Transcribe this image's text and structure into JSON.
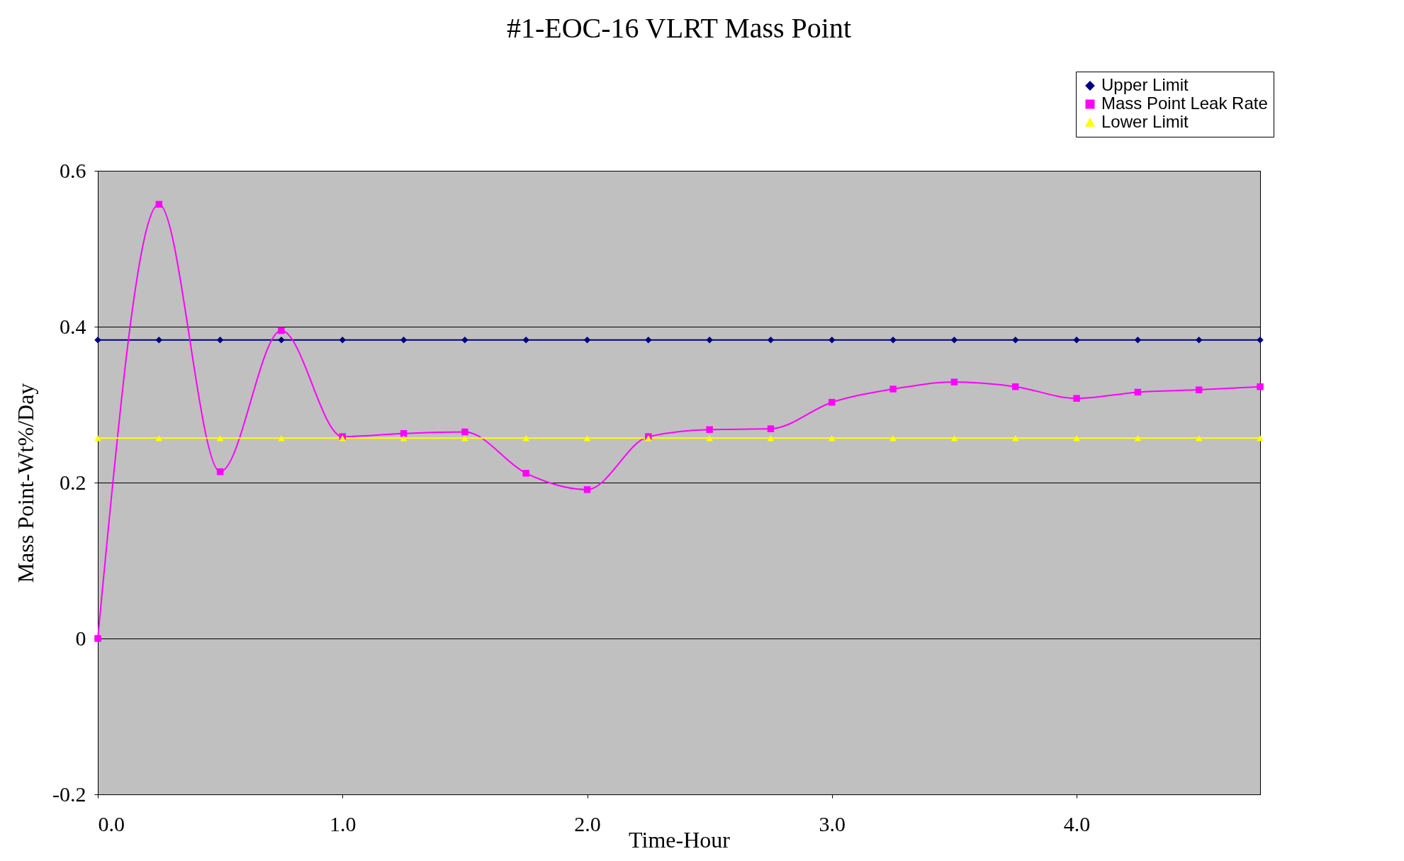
{
  "chart_data": {
    "type": "line",
    "title": "#1-EOC-16 VLRT Mass Point",
    "xlabel": "Time-Hour",
    "ylabel": "Mass Point-Wt%/Day",
    "x": [
      0,
      0.25,
      0.5,
      0.75,
      1.0,
      1.25,
      1.5,
      1.75,
      2.0,
      2.25,
      2.5,
      2.75,
      3.0,
      3.25,
      3.5,
      3.75,
      4.0,
      4.25,
      4.5,
      4.75
    ],
    "series": [
      {
        "name": "Upper Limit",
        "color": "#000080",
        "marker": "diamond",
        "values": [
          0.383,
          0.383,
          0.383,
          0.383,
          0.383,
          0.383,
          0.383,
          0.383,
          0.383,
          0.383,
          0.383,
          0.383,
          0.383,
          0.383,
          0.383,
          0.383,
          0.383,
          0.383,
          0.383,
          0.383
        ]
      },
      {
        "name": "Mass Point Leak Rate",
        "color": "#ff00ff",
        "marker": "square",
        "values": [
          0,
          0.557,
          0.214,
          0.395,
          0.259,
          0.263,
          0.265,
          0.212,
          0.191,
          0.259,
          0.268,
          0.269,
          0.303,
          0.32,
          0.329,
          0.323,
          0.308,
          0.316,
          0.319,
          0.323
        ]
      },
      {
        "name": "Lower Limit",
        "color": "#ffff00",
        "marker": "triangle",
        "values": [
          0.257,
          0.257,
          0.257,
          0.257,
          0.257,
          0.257,
          0.257,
          0.257,
          0.257,
          0.257,
          0.257,
          0.257,
          0.257,
          0.257,
          0.257,
          0.257,
          0.257,
          0.257,
          0.257,
          0.257
        ]
      }
    ],
    "xlim": [
      0,
      4.75
    ],
    "xticks": [
      {
        "value": 0,
        "label": "0.0"
      },
      {
        "value": 1,
        "label": "1.0"
      },
      {
        "value": 2,
        "label": "2.0"
      },
      {
        "value": 3,
        "label": "3.0"
      },
      {
        "value": 4,
        "label": "4.0"
      }
    ],
    "ylim": [
      -0.2,
      0.6
    ],
    "yticks": [
      -0.2,
      0,
      0.2,
      0.4,
      0.6
    ],
    "grid": "y",
    "legend": "top right"
  }
}
